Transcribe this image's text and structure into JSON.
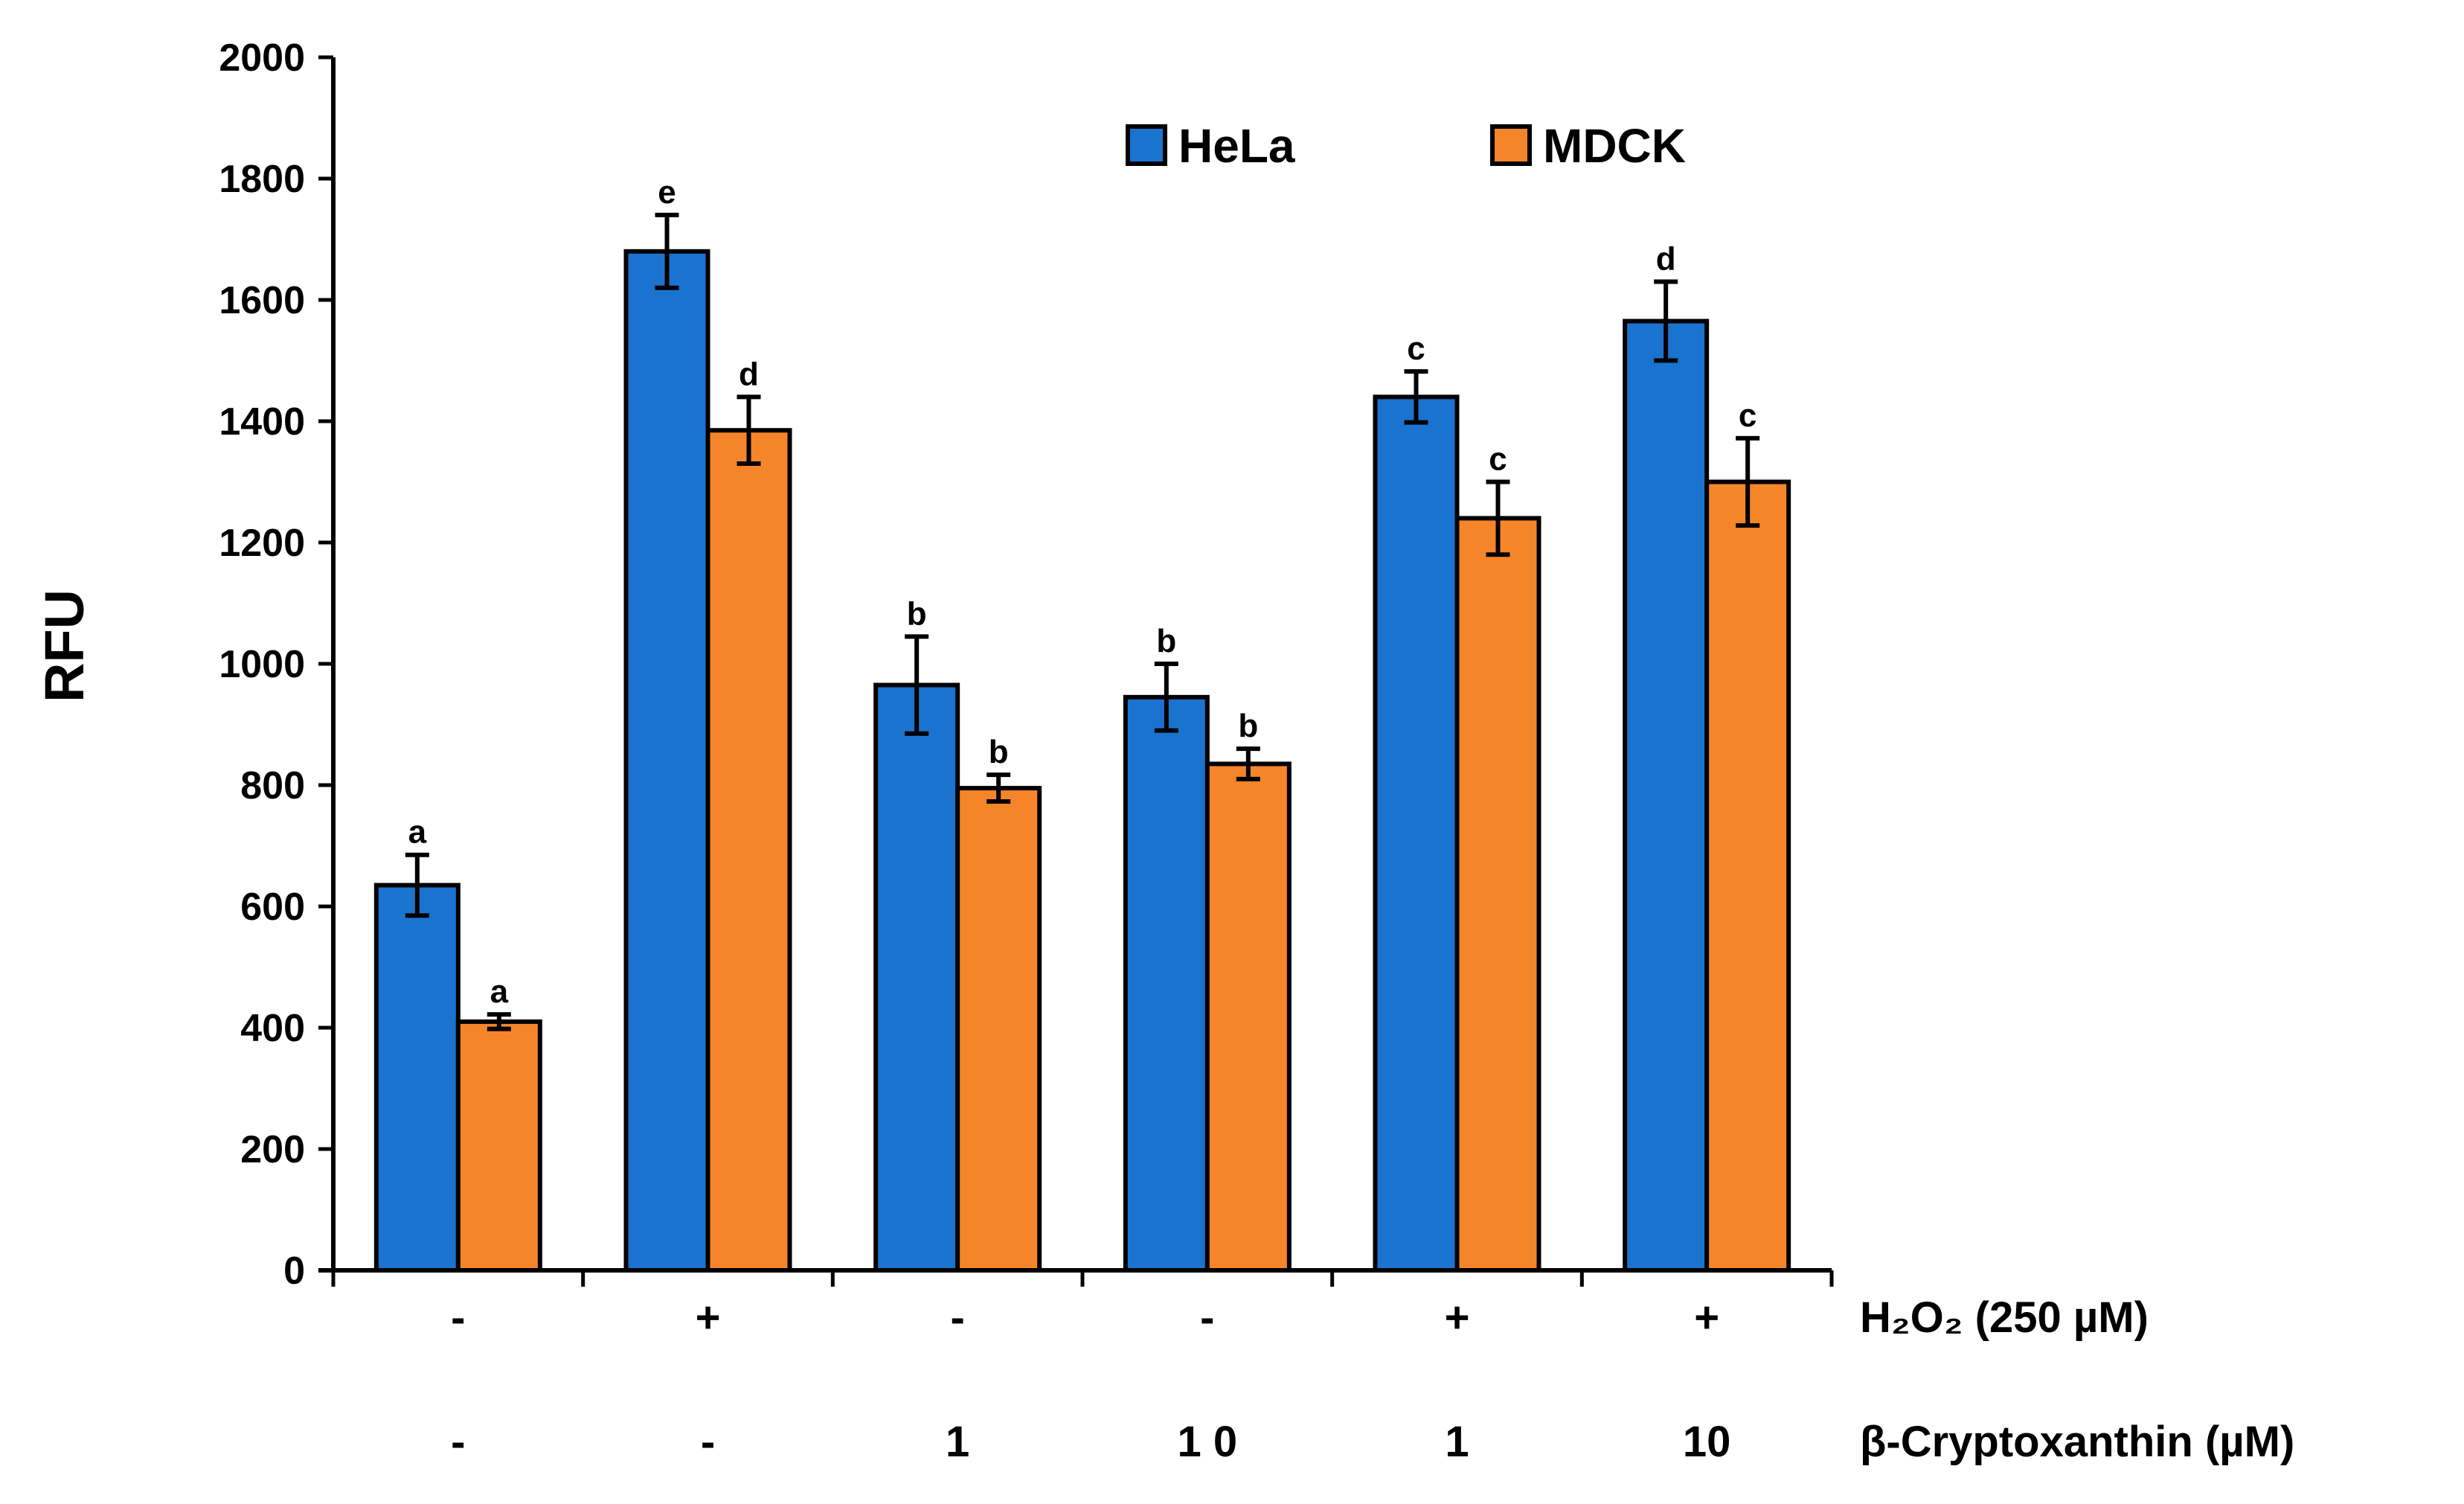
{
  "chart_data": {
    "type": "bar",
    "ylabel": "RFU",
    "ylim": [
      0,
      2000
    ],
    "yticks": [
      "0",
      "200",
      "400",
      "600",
      "800",
      "1000",
      "1200",
      "1400",
      "1600",
      "1800",
      "2000"
    ],
    "ytick_values": [
      0,
      200,
      400,
      600,
      800,
      1000,
      1200,
      1400,
      1600,
      1800,
      2000
    ],
    "grid": false,
    "legend_position": "top-center",
    "series": [
      {
        "name": "HeLa",
        "color": "#1a73cf",
        "values": [
          635,
          1680,
          965,
          945,
          1440,
          1565
        ],
        "errors": [
          50,
          60,
          80,
          55,
          42,
          65
        ],
        "significance": [
          "a",
          "e",
          "b",
          "b",
          "c",
          "d"
        ]
      },
      {
        "name": "MDCK",
        "color": "#f6852a",
        "values": [
          410,
          1385,
          795,
          835,
          1240,
          1300
        ],
        "errors": [
          12,
          55,
          22,
          25,
          60,
          72
        ],
        "significance": [
          "a",
          "d",
          "b",
          "b",
          "c",
          "c"
        ]
      }
    ],
    "treatment_rows": [
      {
        "label": "H₂O₂ (250 µM)",
        "values": [
          "-",
          "+",
          "-",
          "-",
          "+",
          "+"
        ]
      },
      {
        "label": "β-Cryptoxanthin (µM)",
        "values": [
          "-",
          "-",
          "1",
          "1 0",
          "1",
          "10"
        ]
      }
    ]
  }
}
